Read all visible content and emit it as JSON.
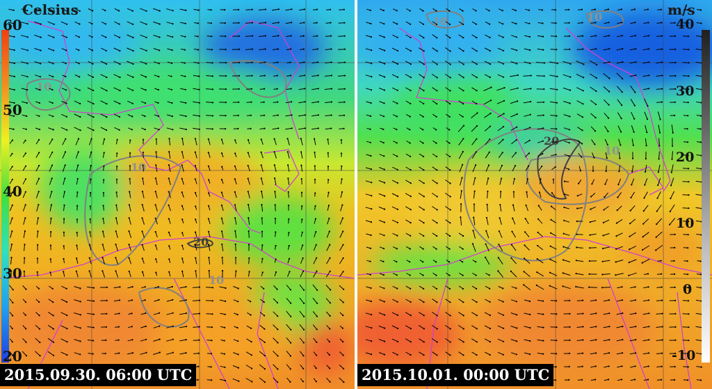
{
  "left_panel": {
    "unit_label": "Celsius",
    "timestamp": "2015.09.30. 06:00 UTC",
    "ticks": [
      "60",
      "50",
      "40",
      "30",
      "20"
    ]
  },
  "right_panel": {
    "unit_label": "m/s",
    "timestamp": "2015.10.01. 00:00 UTC",
    "ticks": [
      "40",
      "30",
      "20",
      "10",
      "0",
      "-10"
    ]
  },
  "contour_labels": [
    "10",
    "10",
    "20",
    "10",
    "10",
    "20",
    "10",
    "10"
  ],
  "colors": {
    "temperature_scale": [
      "#2040e0",
      "#20a0f0",
      "#30e0c0",
      "#40e040",
      "#f0f020",
      "#f0a020",
      "#f04010"
    ],
    "wind_scale": [
      "#ffffff",
      "#c0c0c0",
      "#707070",
      "#202020"
    ],
    "coastline": "#d040d0",
    "contour": "#808080"
  }
}
